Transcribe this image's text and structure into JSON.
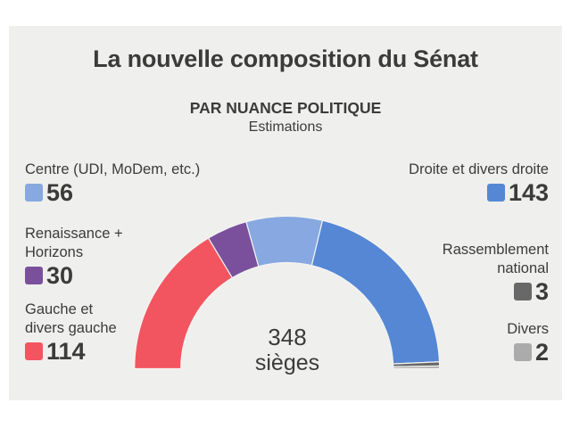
{
  "chart_data": {
    "type": "pie",
    "subtype": "semicircle-parliament",
    "title": "La nouvelle composition du Sénat",
    "subtitle": "PAR NUANCE POLITIQUE",
    "note": "Estimations",
    "total": {
      "value": "348",
      "label": "sièges"
    },
    "series": [
      {
        "name": "Gauche et divers gauche",
        "value": 114,
        "color": "#f2555f"
      },
      {
        "name": "Renaissance + Horizons",
        "value": 30,
        "color": "#7a509c"
      },
      {
        "name": "Centre (UDI, MoDem, etc.)",
        "value": 56,
        "color": "#87a8e0"
      },
      {
        "name": "Droite et divers droite",
        "value": 143,
        "color": "#5587d5"
      },
      {
        "name": "Rassemblement national",
        "value": 3,
        "color": "#686868"
      },
      {
        "name": "Divers",
        "value": 2,
        "color": "#ababab"
      }
    ],
    "legend_placement": "left-and-right"
  },
  "legend": {
    "left": [
      {
        "label_lines": [
          "Centre (UDI, MoDem, etc.)"
        ],
        "value": "56",
        "color": "#87a8e0"
      },
      {
        "label_lines": [
          "Renaissance +",
          "Horizons"
        ],
        "value": "30",
        "color": "#7a509c"
      },
      {
        "label_lines": [
          "Gauche et",
          "divers gauche"
        ],
        "value": "114",
        "color": "#f2555f"
      }
    ],
    "right": [
      {
        "label_lines": [
          "Droite et divers droite"
        ],
        "value": "143",
        "color": "#5587d5"
      },
      {
        "label_lines": [
          "Rassemblement",
          "national"
        ],
        "value": "3",
        "color": "#686868"
      },
      {
        "label_lines": [
          "Divers"
        ],
        "value": "2",
        "color": "#ababab"
      }
    ]
  }
}
